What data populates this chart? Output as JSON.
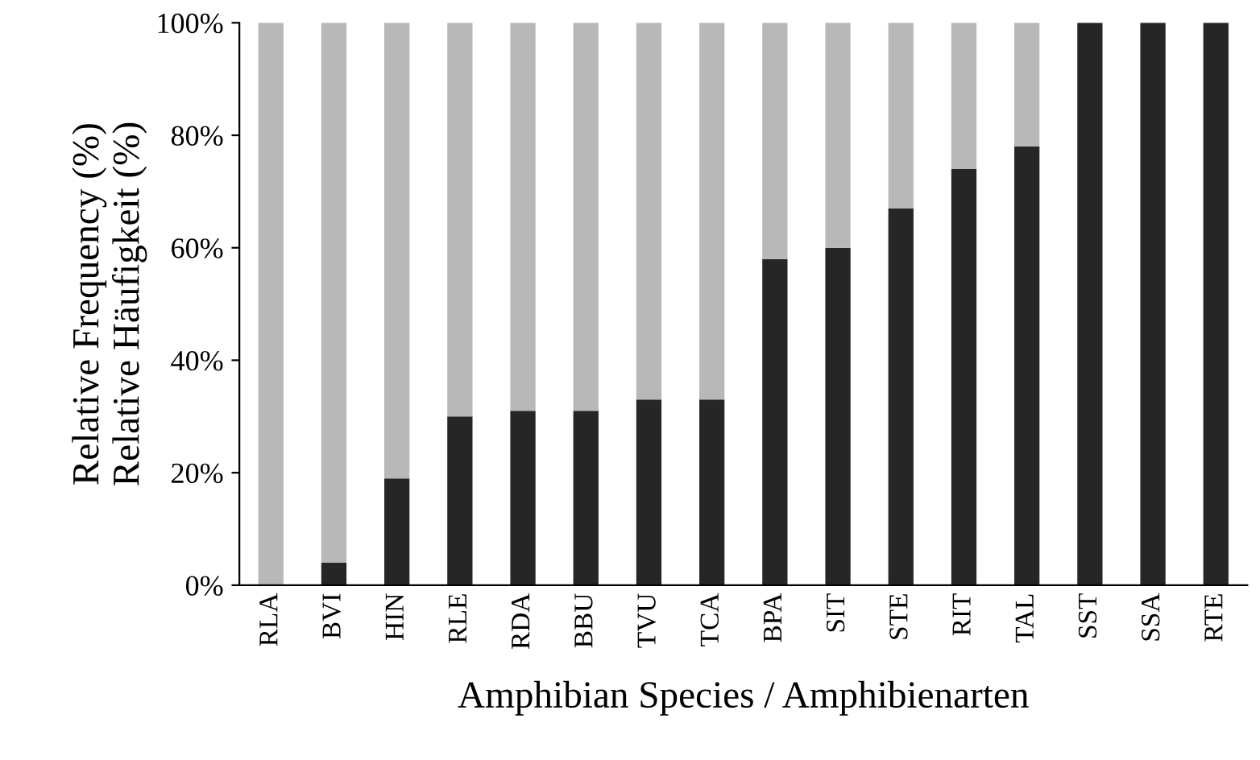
{
  "chart_data": {
    "type": "bar",
    "stacked": true,
    "xlabel": "Amphibian Species / Amphibienarten",
    "ylabel": "Relative Frequency (%)\nRelative Häufigkeit (%)",
    "categories": [
      "RLA",
      "BVI",
      "HIN",
      "RLE",
      "RDA",
      "BBU",
      "TVU",
      "TCA",
      "BPA",
      "SIT",
      "STE",
      "RIT",
      "TAL",
      "SST",
      "SSA",
      "RTE"
    ],
    "series": [
      {
        "color": "#262626",
        "values": [
          0,
          4,
          19,
          30,
          31,
          31,
          33,
          33,
          58,
          60,
          67,
          74,
          78,
          100,
          100,
          100
        ]
      },
      {
        "color": "#b8b8b8",
        "values": [
          100,
          96,
          81,
          70,
          69,
          69,
          67,
          67,
          42,
          40,
          33,
          26,
          22,
          0,
          0,
          0
        ]
      }
    ],
    "ylim": [
      0,
      100
    ],
    "yticks": [
      {
        "value": 0,
        "label": "0%"
      },
      {
        "value": 20,
        "label": "20%"
      },
      {
        "value": 40,
        "label": "40%"
      },
      {
        "value": 60,
        "label": "60%"
      },
      {
        "value": 80,
        "label": "80%"
      },
      {
        "value": 100,
        "label": "100%"
      }
    ],
    "grid": false
  }
}
